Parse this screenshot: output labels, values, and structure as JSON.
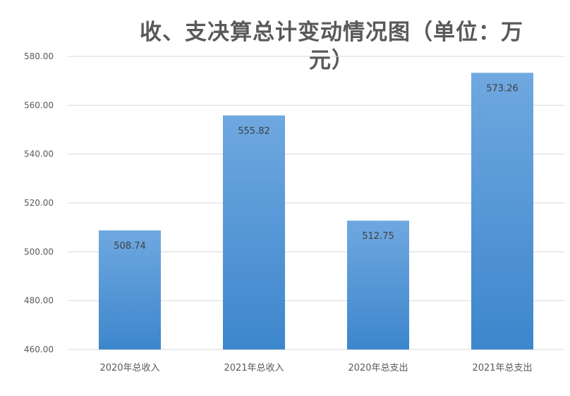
{
  "chart_data": {
    "type": "bar",
    "title_line1": "收、支决算总计变动情况图（单位：万",
    "title_line2": "元）",
    "categories": [
      "2020年总收入",
      "2021年总收入",
      "2020年总支出",
      "2021年总支出"
    ],
    "values": [
      508.74,
      555.82,
      512.75,
      573.26
    ],
    "data_labels": [
      "508.74",
      "555.82",
      "512.75",
      "573.26"
    ],
    "ylim": [
      460,
      580
    ],
    "yticks": [
      460,
      480,
      500,
      520,
      540,
      560,
      580
    ],
    "ytick_labels": [
      "460.00",
      "480.00",
      "500.00",
      "520.00",
      "540.00",
      "560.00",
      "580.00"
    ],
    "grid": true,
    "legend": false,
    "bar_color_top": "#6fa8e0",
    "bar_color_bottom": "#3d86cc",
    "gridline_color": "#d9d9d9",
    "text_color": "#595959"
  }
}
